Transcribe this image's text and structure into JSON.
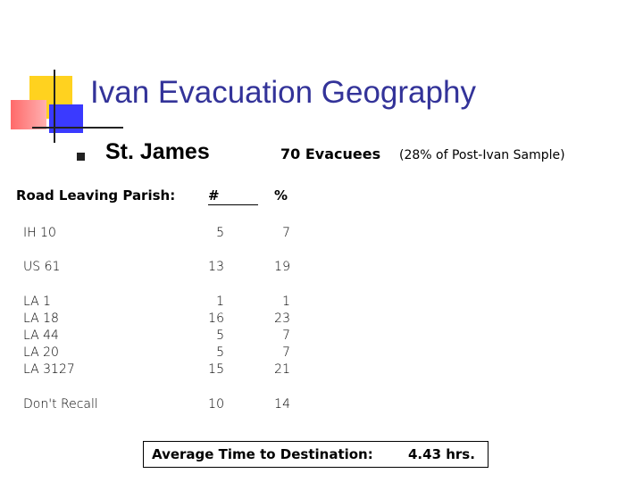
{
  "slide": {
    "title": "Ivan Evacuation Geography",
    "parish": "St. James",
    "evacuees": "70 Evacuees",
    "evacuees_note": "(28% of Post-Ivan Sample)"
  },
  "table": {
    "headers": {
      "road": "Road Leaving Parish:",
      "num": "#",
      "pct": "%"
    },
    "groups": [
      {
        "rows": [
          {
            "road": "IH 10",
            "num": "5",
            "pct": "7"
          }
        ]
      },
      {
        "rows": [
          {
            "road": "US 61",
            "num": "13",
            "pct": "19"
          }
        ]
      },
      {
        "rows": [
          {
            "road": "LA 1",
            "num": "1",
            "pct": "1"
          },
          {
            "road": "LA 18",
            "num": "16",
            "pct": "23"
          },
          {
            "road": "LA 44",
            "num": "5",
            "pct": "7"
          },
          {
            "road": "LA 20",
            "num": "5",
            "pct": "7"
          },
          {
            "road": "LA 3127",
            "num": "15",
            "pct": "21"
          }
        ]
      },
      {
        "rows": [
          {
            "road": "Don't Recall",
            "num": "10",
            "pct": "14"
          }
        ]
      }
    ]
  },
  "summary": {
    "label": "Average Time to Destination:",
    "value": "4.43 hrs."
  },
  "colors": {
    "title": "#333399",
    "deco_yellow": "#ffd21f",
    "deco_red": "#ff6a6a",
    "deco_blue": "#3a3aff"
  }
}
